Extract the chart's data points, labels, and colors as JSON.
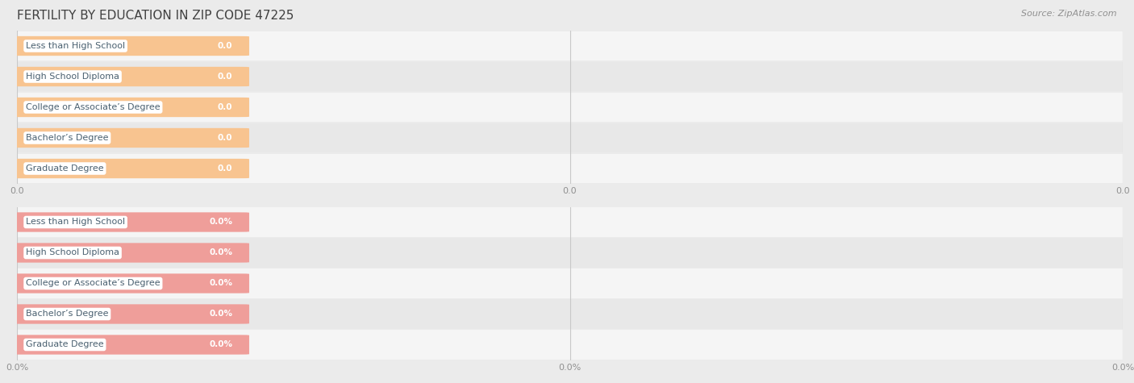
{
  "title": "FERTILITY BY EDUCATION IN ZIP CODE 47225",
  "source": "Source: ZipAtlas.com",
  "categories": [
    "Less than High School",
    "High School Diploma",
    "College or Associate’s Degree",
    "Bachelor’s Degree",
    "Graduate Degree"
  ],
  "top_values": [
    0.0,
    0.0,
    0.0,
    0.0,
    0.0
  ],
  "bottom_values": [
    0.0,
    0.0,
    0.0,
    0.0,
    0.0
  ],
  "top_bar_color": "#F8C490",
  "bottom_bar_color": "#EF9E9A",
  "bg_color": "#EBEBEB",
  "row_even_color": "#F5F5F5",
  "row_odd_color": "#E8E8E8",
  "title_color": "#404040",
  "source_color": "#909090",
  "tick_label_color": "#909090",
  "bar_value_color": "#FFFFFF",
  "category_text_color": "#4A6070",
  "label_bg_color": "#FFFFFF",
  "top_xtick_labels": [
    "0.0",
    "0.0",
    "0.0"
  ],
  "bottom_xtick_labels": [
    "0.0%",
    "0.0%",
    "0.0%"
  ],
  "figsize": [
    14.06,
    4.75
  ],
  "dpi": 100,
  "title_fontsize": 11,
  "source_fontsize": 8,
  "cat_fontsize": 8,
  "val_fontsize": 7.5
}
